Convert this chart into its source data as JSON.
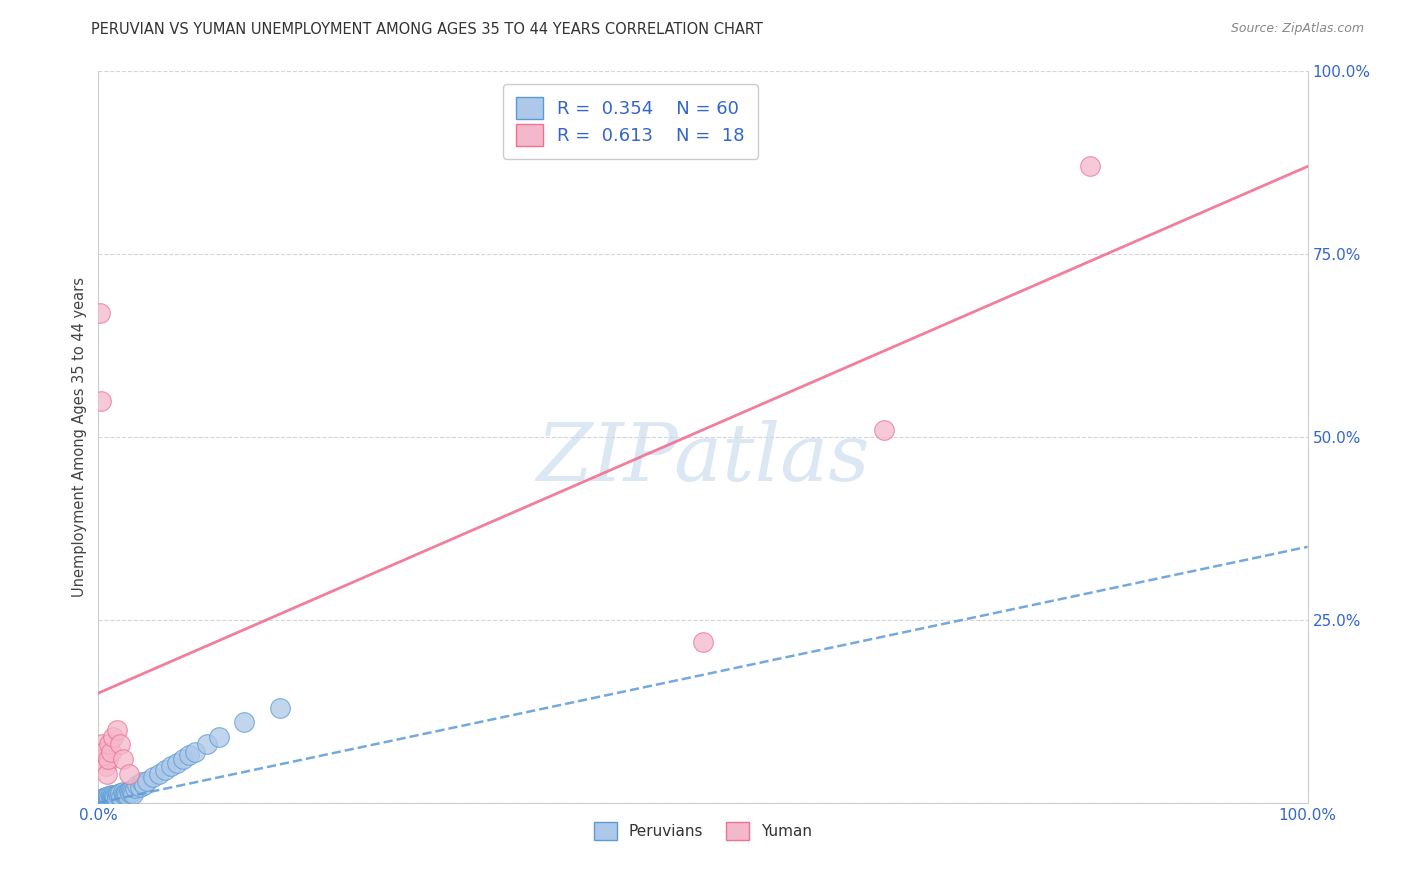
{
  "title": "PERUVIAN VS YUMAN UNEMPLOYMENT AMONG AGES 35 TO 44 YEARS CORRELATION CHART",
  "source": "Source: ZipAtlas.com",
  "ylabel": "Unemployment Among Ages 35 to 44 years",
  "xlim": [
    0,
    1
  ],
  "ylim": [
    0,
    1
  ],
  "xticks": [
    0.0,
    0.25,
    0.5,
    0.75,
    1.0
  ],
  "xticklabels": [
    "0.0%",
    "",
    "",
    "",
    "100.0%"
  ],
  "yticks": [
    0.0,
    0.25,
    0.5,
    0.75,
    1.0
  ],
  "right_yticklabels": [
    "",
    "25.0%",
    "50.0%",
    "75.0%",
    "100.0%"
  ],
  "peruvian_R": 0.354,
  "peruvian_N": 60,
  "yuman_R": 0.613,
  "yuman_N": 18,
  "peruvian_color": "#adc8e8",
  "peruvian_edge_color": "#5b9bd5",
  "yuman_color": "#f4b8cc",
  "yuman_edge_color": "#f07090",
  "blue_line_color": "#5b9bd5",
  "pink_line_color": "#f07090",
  "background_color": "#ffffff",
  "grid_color": "#cccccc",
  "watermark": "ZIPatlas",
  "peruvian_x": [
    0.001,
    0.002,
    0.002,
    0.003,
    0.003,
    0.004,
    0.004,
    0.005,
    0.005,
    0.006,
    0.006,
    0.007,
    0.007,
    0.008,
    0.008,
    0.009,
    0.009,
    0.01,
    0.01,
    0.011,
    0.011,
    0.012,
    0.012,
    0.013,
    0.013,
    0.014,
    0.015,
    0.015,
    0.016,
    0.017,
    0.018,
    0.019,
    0.02,
    0.021,
    0.022,
    0.023,
    0.024,
    0.025,
    0.026,
    0.027,
    0.028,
    0.029,
    0.03,
    0.032,
    0.034,
    0.036,
    0.038,
    0.04,
    0.045,
    0.05,
    0.055,
    0.06,
    0.065,
    0.07,
    0.075,
    0.08,
    0.09,
    0.1,
    0.12,
    0.15
  ],
  "peruvian_y": [
    0.003,
    0.004,
    0.002,
    0.005,
    0.003,
    0.006,
    0.004,
    0.007,
    0.003,
    0.005,
    0.008,
    0.004,
    0.006,
    0.005,
    0.009,
    0.004,
    0.007,
    0.006,
    0.01,
    0.005,
    0.008,
    0.007,
    0.011,
    0.006,
    0.009,
    0.008,
    0.01,
    0.007,
    0.012,
    0.009,
    0.013,
    0.008,
    0.015,
    0.012,
    0.01,
    0.014,
    0.011,
    0.016,
    0.013,
    0.018,
    0.015,
    0.012,
    0.02,
    0.025,
    0.022,
    0.028,
    0.025,
    0.03,
    0.035,
    0.04,
    0.045,
    0.05,
    0.055,
    0.06,
    0.065,
    0.07,
    0.08,
    0.09,
    0.11,
    0.13
  ],
  "yuman_x": [
    0.001,
    0.002,
    0.003,
    0.004,
    0.005,
    0.006,
    0.007,
    0.008,
    0.009,
    0.01,
    0.012,
    0.015,
    0.018,
    0.02,
    0.025,
    0.5,
    0.65,
    0.82
  ],
  "yuman_y": [
    0.67,
    0.55,
    0.08,
    0.06,
    0.07,
    0.05,
    0.04,
    0.06,
    0.08,
    0.07,
    0.09,
    0.1,
    0.08,
    0.06,
    0.04,
    0.22,
    0.51,
    0.87
  ],
  "pink_line_x0": 0.0,
  "pink_line_y0": 0.15,
  "pink_line_x1": 1.0,
  "pink_line_y1": 0.87,
  "blue_line_x0": 0.0,
  "blue_line_y0": 0.0,
  "blue_line_x1": 1.0,
  "blue_line_y1": 0.35
}
